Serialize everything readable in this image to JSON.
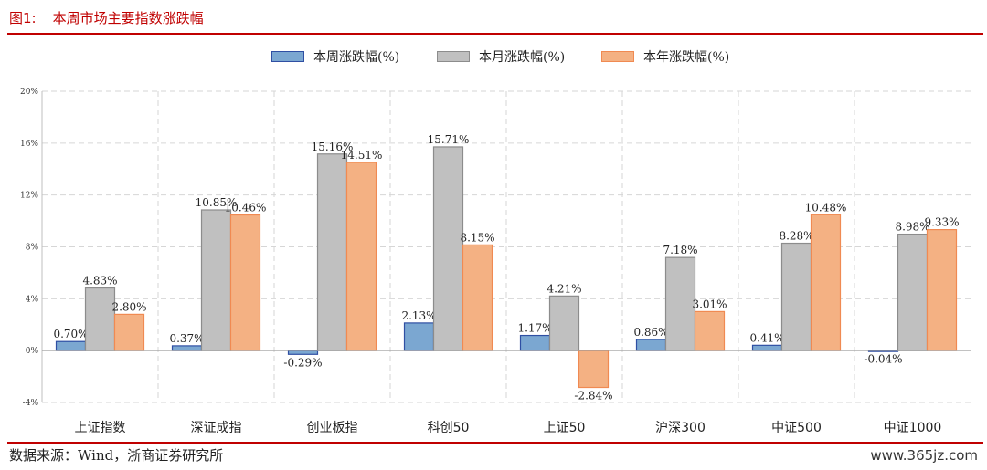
{
  "figure": {
    "number": "图1:",
    "title": "本周市场主要指数涨跌幅"
  },
  "source_note": "数据来源：Wind，浙商证券研究所",
  "watermark": "www.365jz.com",
  "chart_data": {
    "type": "bar",
    "categories": [
      "上证指数",
      "深证成指",
      "创业板指",
      "科创50",
      "上证50",
      "沪深300",
      "中证500",
      "中证1000"
    ],
    "series": [
      {
        "name": "本周涨跌幅(%)",
        "values": [
          0.7,
          0.37,
          -0.29,
          2.13,
          1.17,
          0.86,
          0.41,
          -0.04
        ],
        "labels": [
          "0.70%",
          "0.37%",
          "-0.29%",
          "2.13%",
          "1.17%",
          "0.86%",
          "0.41%",
          "-0.04%"
        ],
        "fill": "#7ba7d1",
        "stroke": "#2f4fa3"
      },
      {
        "name": "本月涨跌幅(%)",
        "values": [
          4.83,
          10.85,
          15.16,
          15.71,
          4.21,
          7.18,
          8.28,
          8.98
        ],
        "labels": [
          "4.83%",
          "10.85%",
          "15.16%",
          "15.71%",
          "4.21%",
          "7.18%",
          "8.28%",
          "8.98%"
        ],
        "fill": "#c0c0c0",
        "stroke": "#8c8c8c"
      },
      {
        "name": "本年涨跌幅(%)",
        "values": [
          2.8,
          10.46,
          14.51,
          8.15,
          -2.84,
          3.01,
          10.48,
          9.33
        ],
        "labels": [
          "2.80%",
          "10.46%",
          "14.51%",
          "8.15%",
          "-2.84%",
          "3.01%",
          "10.48%",
          "9.33%"
        ],
        "fill": "#f4b183",
        "stroke": "#f08a52"
      }
    ],
    "y_ticks": [
      -4,
      0,
      4,
      8,
      12,
      16,
      20
    ],
    "y_tick_labels": [
      "-4%",
      "0%",
      "4%",
      "8%",
      "12%",
      "16%",
      "20%"
    ],
    "ylim": [
      -4,
      20
    ],
    "grid": true,
    "legend_position": "top-center"
  }
}
